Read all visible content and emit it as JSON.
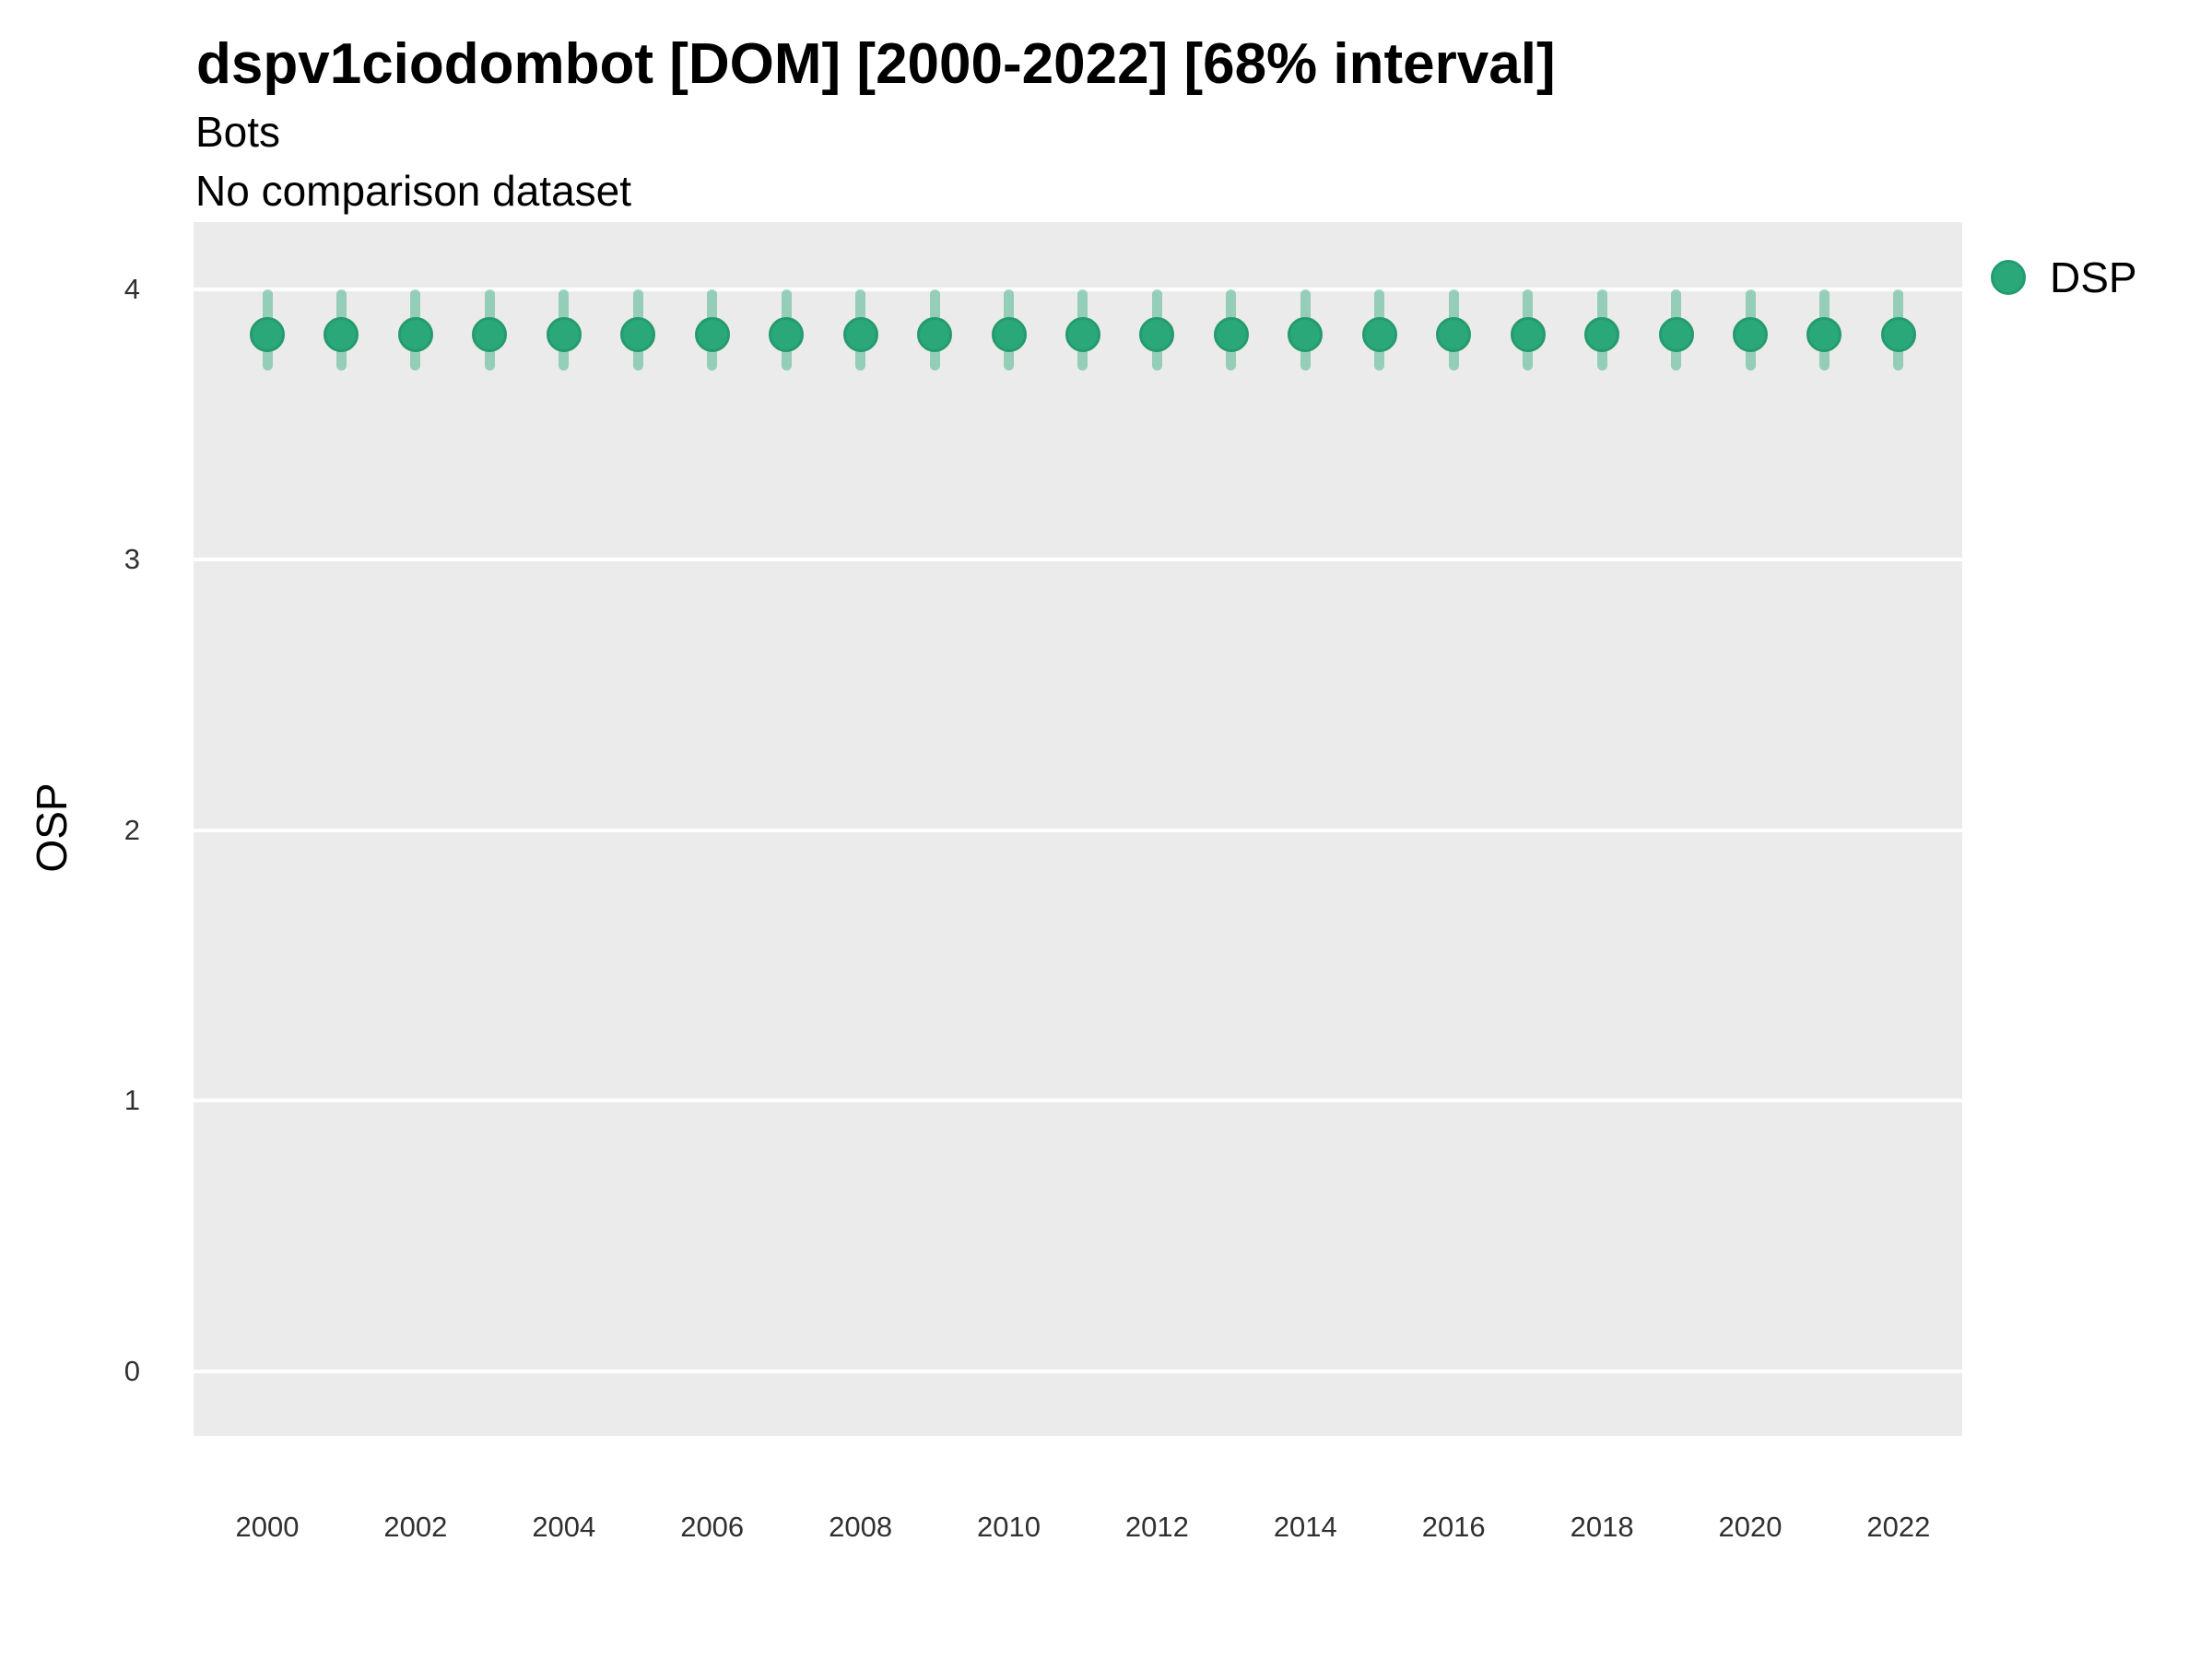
{
  "header": {
    "title": "dspv1ciodombot [DOM] [2000-2022] [68% interval]",
    "subtitle": "Bots",
    "comparison_note": "No comparison dataset"
  },
  "axes": {
    "y_label": "OSP",
    "x_label": ""
  },
  "legend": {
    "position": "right-top",
    "items": [
      {
        "label": "DSP",
        "marker": "circle",
        "color": "#2BA87A"
      }
    ]
  },
  "chart_data": {
    "type": "scatter",
    "title": "dspv1ciodombot [DOM] [2000-2022] [68% interval]",
    "subtitle": "Bots",
    "note": "No comparison dataset",
    "xlabel": "",
    "ylabel": "OSP",
    "interval_label": "68% interval",
    "grid": true,
    "panel_background": "#EBEBEB",
    "gridline_color": "#FFFFFF",
    "ylim": [
      -0.24,
      4.25
    ],
    "yticks": [
      0,
      1,
      2,
      3,
      4
    ],
    "xticks": [
      2000,
      2002,
      2004,
      2006,
      2008,
      2010,
      2012,
      2014,
      2016,
      2018,
      2020,
      2022
    ],
    "x": [
      2000,
      2001,
      2002,
      2003,
      2004,
      2005,
      2006,
      2007,
      2008,
      2009,
      2010,
      2011,
      2012,
      2013,
      2014,
      2015,
      2016,
      2017,
      2018,
      2019,
      2020,
      2021,
      2022
    ],
    "series": [
      {
        "name": "DSP",
        "est": [
          3.83,
          3.83,
          3.83,
          3.83,
          3.83,
          3.83,
          3.83,
          3.83,
          3.83,
          3.83,
          3.83,
          3.83,
          3.83,
          3.83,
          3.83,
          3.83,
          3.83,
          3.83,
          3.83,
          3.83,
          3.83,
          3.83,
          3.83
        ],
        "lo": [
          3.7,
          3.7,
          3.7,
          3.7,
          3.7,
          3.7,
          3.7,
          3.7,
          3.7,
          3.7,
          3.7,
          3.7,
          3.7,
          3.7,
          3.7,
          3.7,
          3.7,
          3.7,
          3.7,
          3.7,
          3.7,
          3.7,
          3.7
        ],
        "hi": [
          4.0,
          4.0,
          4.0,
          4.0,
          4.0,
          4.0,
          4.0,
          4.0,
          4.0,
          4.0,
          4.0,
          4.0,
          4.0,
          4.0,
          4.0,
          4.0,
          4.0,
          4.0,
          4.0,
          4.0,
          4.0,
          4.0,
          4.0
        ]
      }
    ],
    "colors": {
      "point": "#2BA87A",
      "point_edge": "#249B6F",
      "interval": "rgba(43,168,122,0.45)"
    },
    "legend_position": "right-top"
  }
}
